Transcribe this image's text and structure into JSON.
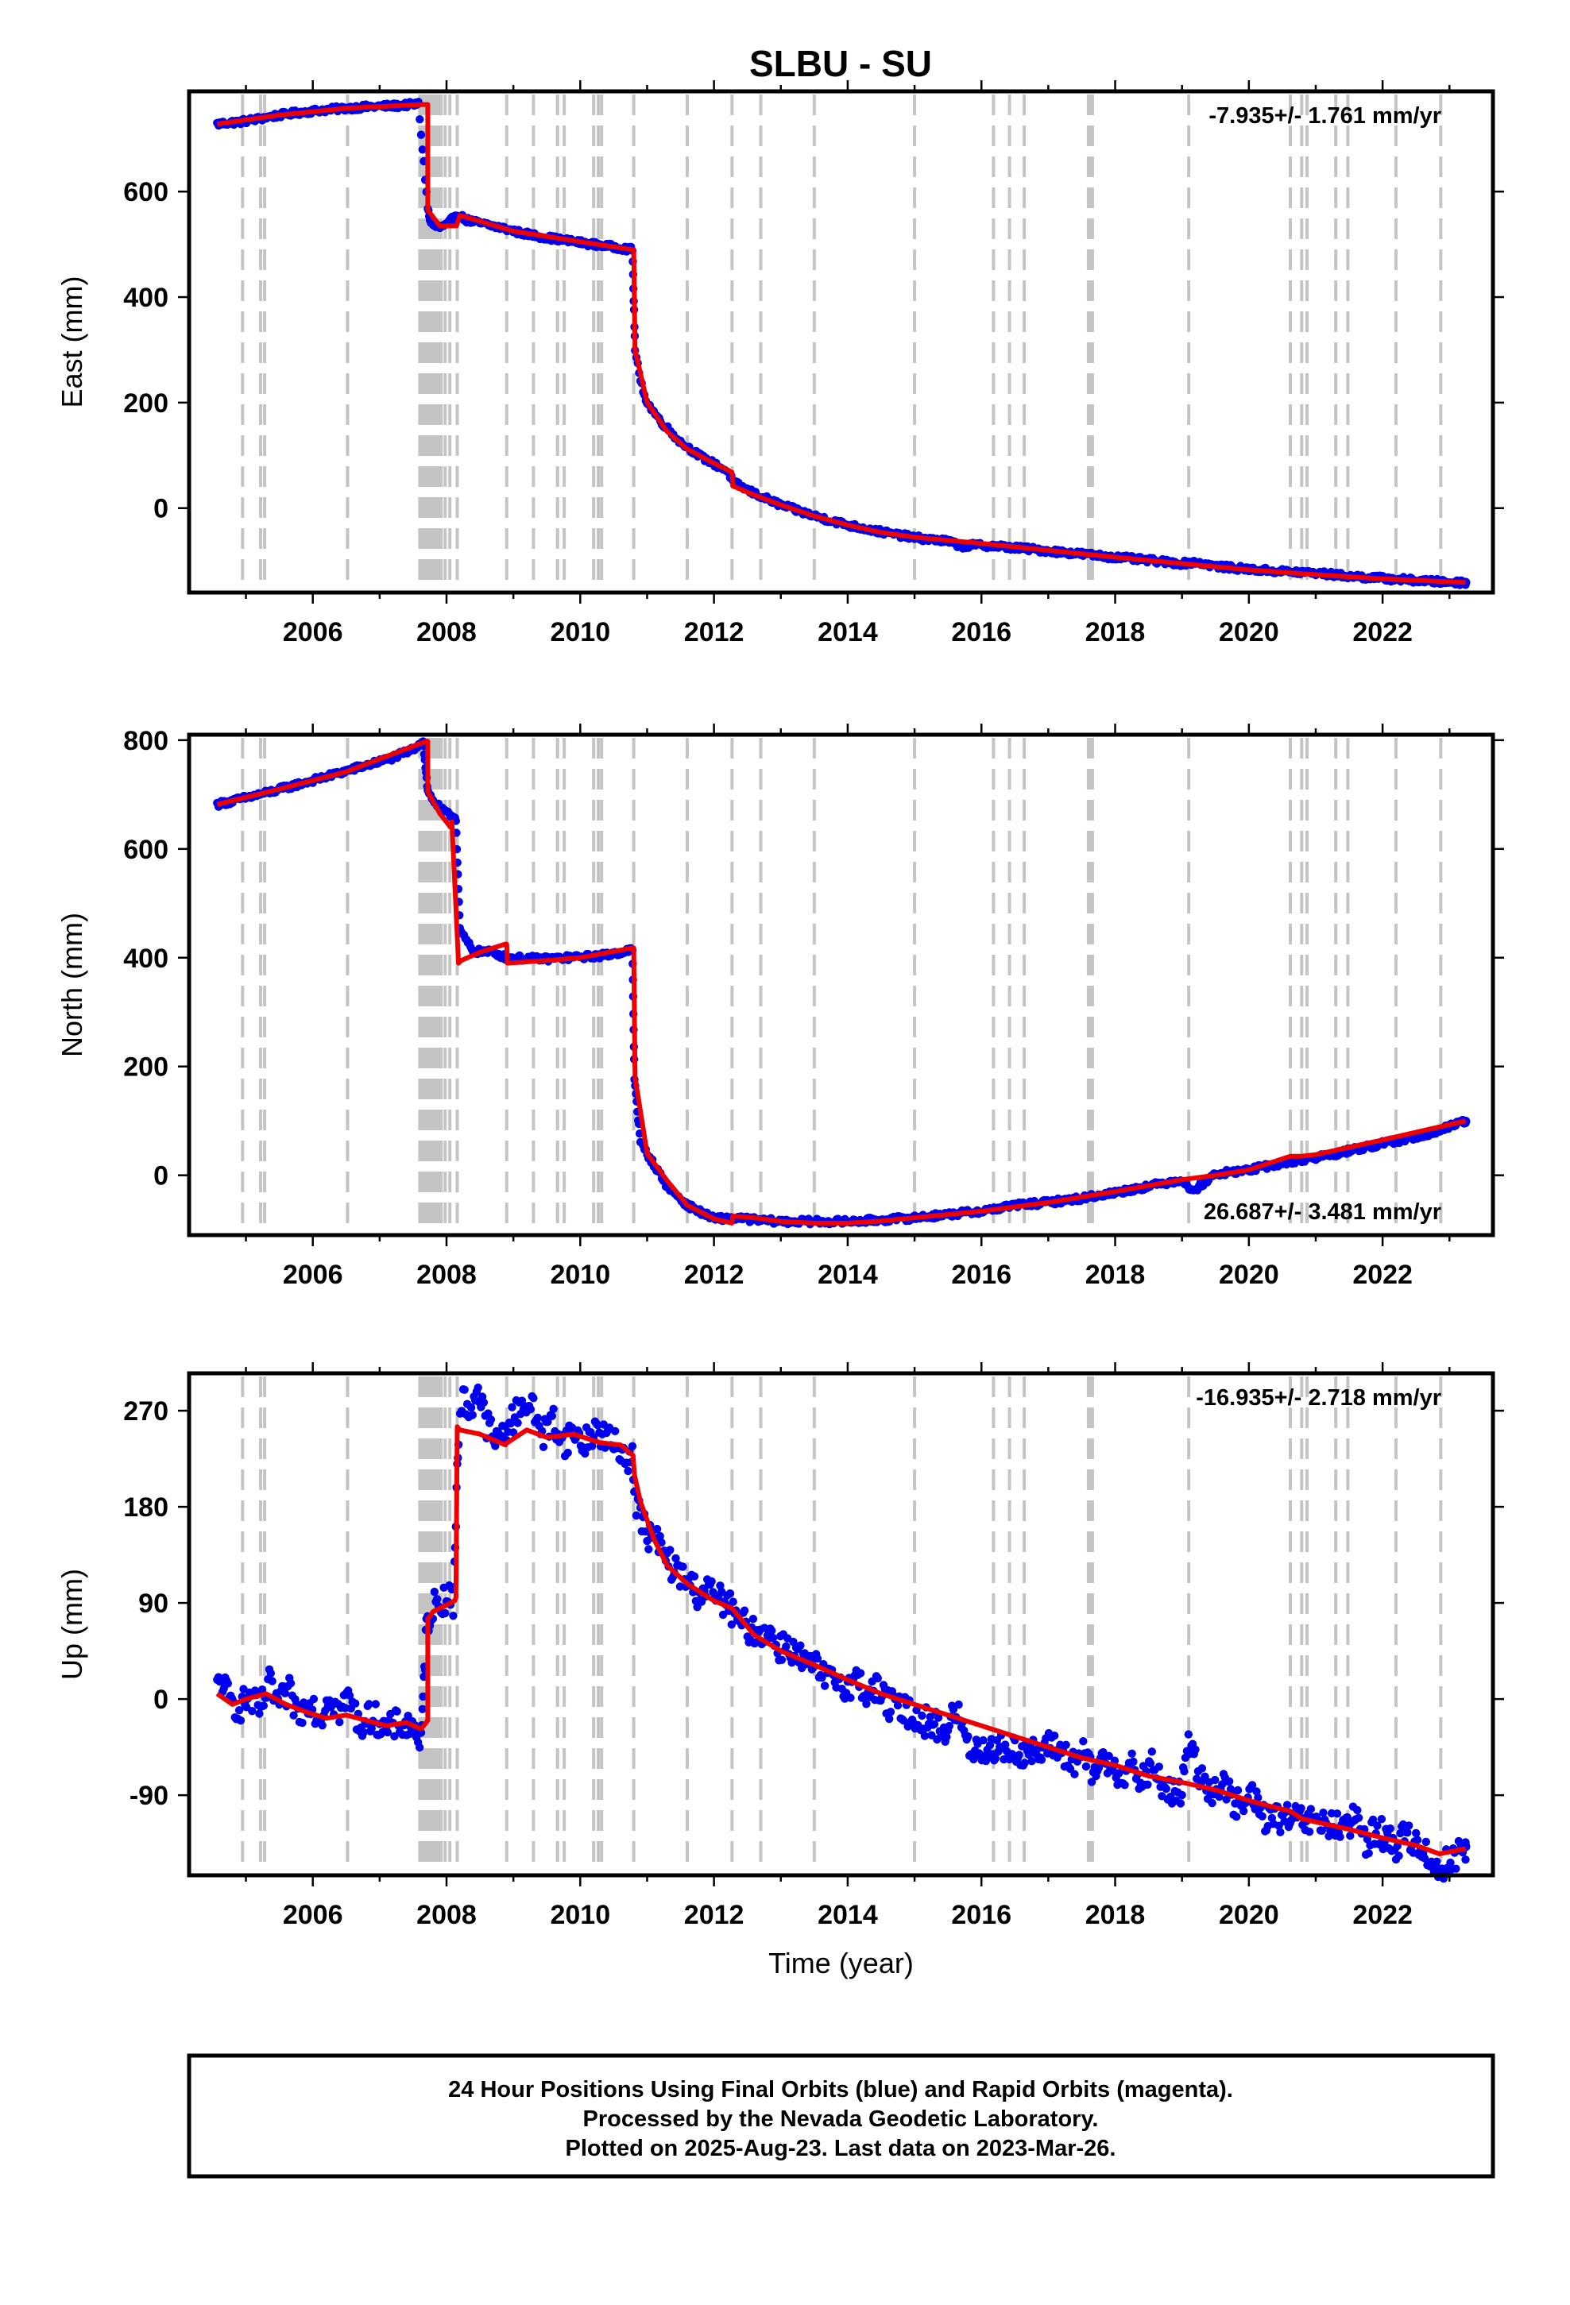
{
  "chart_data": [
    {
      "type": "scatter",
      "title": "SLBU - SU",
      "ylabel": "East (mm)",
      "xlabel": "",
      "xlim": [
        2004.15,
        2023.65
      ],
      "ylim": [
        -160,
        790
      ],
      "xticks": [
        2006,
        2008,
        2010,
        2012,
        2014,
        2016,
        2018,
        2020,
        2022
      ],
      "yticks": [
        0,
        200,
        400,
        600
      ],
      "velocity": "-7.935+/- 1.761 mm/yr",
      "velocity_position": "top-right",
      "gridlines": [
        2004.95,
        2005.22,
        2005.28,
        2006.52,
        2007.6,
        2007.63,
        2007.66,
        2007.69,
        2007.72,
        2007.75,
        2007.78,
        2007.81,
        2007.84,
        2007.88,
        2007.92,
        2007.98,
        2008.05,
        2008.16,
        2008.9,
        2009.3,
        2009.66,
        2009.76,
        2010.2,
        2010.27,
        2010.32,
        2010.8,
        2011.6,
        2012.27,
        2012.7,
        2013.5,
        2015.0,
        2016.18,
        2016.42,
        2016.64,
        2017.6,
        2017.63,
        2017.66,
        2019.1,
        2020.62,
        2020.79,
        2020.87,
        2021.3,
        2021.48,
        2022.2,
        2022.87
      ],
      "series": [
        {
          "color": "#0000ee",
          "x": [
            2004.57,
            2004.7,
            2004.9,
            2005.2,
            2005.5,
            2005.8,
            2006.1,
            2006.5,
            2006.9,
            2007.3,
            2007.58,
            2007.72,
            2007.75,
            2007.8,
            2007.9,
            2008.0,
            2008.15,
            2008.3,
            2008.5,
            2008.8,
            2009.1,
            2009.4,
            2009.8,
            2010.2,
            2010.5,
            2010.78,
            2010.82,
            2010.9,
            2011.0,
            2011.2,
            2011.5,
            2011.8,
            2012.2,
            2012.3,
            2012.6,
            2013.0,
            2013.5,
            2014.0,
            2014.5,
            2015.0,
            2015.5,
            2015.7,
            2016.0,
            2016.5,
            2017.0,
            2017.5,
            2018.0,
            2018.5,
            2019.0,
            2019.2,
            2019.5,
            2020.0,
            2020.5,
            2021.0,
            2021.5,
            2022.0,
            2022.5,
            2022.9,
            2023.24
          ],
          "y": [
            728,
            730,
            732,
            738,
            745,
            750,
            754,
            758,
            761,
            763,
            766,
            570,
            545,
            535,
            532,
            535,
            558,
            546,
            540,
            532,
            522,
            515,
            507,
            500,
            495,
            490,
            300,
            240,
            200,
            165,
            125,
            98,
            70,
            48,
            28,
            6,
            -15,
            -32,
            -45,
            -56,
            -63,
            -72,
            -70,
            -75,
            -81,
            -87,
            -93,
            -99,
            -105,
            -102,
            -110,
            -116,
            -120,
            -123,
            -129,
            -133,
            -137,
            -140,
            -141
          ]
        },
        {
          "color": "#ee0000",
          "x": [
            2004.57,
            2005.5,
            2006.5,
            2007.62,
            2007.72,
            2007.72,
            2007.9,
            2008.15,
            2008.2,
            2009.0,
            2010.0,
            2010.78,
            2010.8,
            2010.82,
            2011.0,
            2011.3,
            2011.6,
            2012.0,
            2012.27,
            2012.28,
            2012.6,
            2013.0,
            2013.5,
            2014.0,
            2014.5,
            2015.0,
            2016.0,
            2017.0,
            2018.0,
            2019.0,
            2020.0,
            2021.0,
            2022.0,
            2023.24
          ],
          "y": [
            728,
            745,
            758,
            765,
            765,
            565,
            535,
            535,
            555,
            525,
            505,
            490,
            490,
            300,
            200,
            145,
            112,
            85,
            68,
            42,
            25,
            6,
            -15,
            -32,
            -46,
            -55,
            -67,
            -80,
            -93,
            -105,
            -117,
            -126,
            -134,
            -141
          ]
        }
      ]
    },
    {
      "type": "scatter",
      "title": "",
      "ylabel": "North (mm)",
      "xlabel": "",
      "xlim": [
        2004.15,
        2023.65
      ],
      "ylim": [
        -110,
        810
      ],
      "xticks": [
        2006,
        2008,
        2010,
        2012,
        2014,
        2016,
        2018,
        2020,
        2022
      ],
      "yticks": [
        0,
        200,
        400,
        600,
        800
      ],
      "velocity": "26.687+/- 3.481 mm/yr",
      "velocity_position": "bottom-right",
      "gridlines": [
        2004.95,
        2005.22,
        2005.28,
        2006.52,
        2007.6,
        2007.63,
        2007.66,
        2007.69,
        2007.72,
        2007.75,
        2007.78,
        2007.81,
        2007.84,
        2007.88,
        2007.92,
        2007.98,
        2008.05,
        2008.16,
        2008.9,
        2009.3,
        2009.66,
        2009.76,
        2010.2,
        2010.27,
        2010.32,
        2010.8,
        2011.6,
        2012.27,
        2012.7,
        2013.5,
        2015.0,
        2016.18,
        2016.42,
        2016.64,
        2017.6,
        2017.63,
        2017.66,
        2019.1,
        2020.62,
        2020.79,
        2020.87,
        2021.3,
        2021.48,
        2022.2,
        2022.87
      ],
      "series": [
        {
          "color": "#0000ee",
          "x": [
            2004.57,
            2004.8,
            2005.1,
            2005.4,
            2005.7,
            2006.0,
            2006.3,
            2006.6,
            2006.9,
            2007.2,
            2007.5,
            2007.65,
            2007.72,
            2007.8,
            2007.9,
            2008.0,
            2008.1,
            2008.14,
            2008.2,
            2008.4,
            2008.7,
            2008.9,
            2009.2,
            2009.5,
            2009.8,
            2010.1,
            2010.4,
            2010.6,
            2010.78,
            2010.81,
            2010.9,
            2011.1,
            2011.3,
            2011.6,
            2012.0,
            2012.3,
            2012.6,
            2013.0,
            2013.5,
            2014.0,
            2014.5,
            2015.0,
            2015.5,
            2016.0,
            2016.5,
            2017.0,
            2017.5,
            2018.0,
            2018.5,
            2019.0,
            2019.15,
            2019.5,
            2020.0,
            2020.5,
            2021.0,
            2021.5,
            2022.0,
            2022.5,
            2022.9,
            2023.24
          ],
          "y": [
            682,
            688,
            697,
            706,
            716,
            726,
            736,
            747,
            757,
            768,
            783,
            800,
            705,
            690,
            675,
            665,
            660,
            655,
            450,
            412,
            410,
            400,
            399,
            398,
            400,
            402,
            405,
            410,
            415,
            180,
            60,
            20,
            -20,
            -55,
            -80,
            -78,
            -82,
            -85,
            -85,
            -85,
            -82,
            -78,
            -72,
            -66,
            -55,
            -50,
            -42,
            -32,
            -20,
            -8,
            -30,
            2,
            10,
            22,
            32,
            45,
            58,
            70,
            85,
            99
          ]
        },
        {
          "color": "#ee0000",
          "x": [
            2004.57,
            2005.5,
            2006.5,
            2007.7,
            2007.72,
            2007.72,
            2007.9,
            2008.06,
            2008.08,
            2008.18,
            2008.22,
            2008.5,
            2008.88,
            2008.9,
            2008.91,
            2009.5,
            2010.0,
            2010.78,
            2010.8,
            2010.82,
            2011.0,
            2011.3,
            2011.6,
            2012.0,
            2012.27,
            2012.28,
            2012.6,
            2013.0,
            2013.5,
            2014.0,
            2014.5,
            2015.0,
            2016.0,
            2017.0,
            2018.0,
            2019.0,
            2019.5,
            2020.0,
            2020.62,
            2020.79,
            2021.0,
            2022.0,
            2023.24
          ],
          "y": [
            682,
            710,
            742,
            798,
            798,
            705,
            665,
            640,
            650,
            390,
            395,
            410,
            425,
            425,
            390,
            395,
            400,
            418,
            418,
            180,
            40,
            -10,
            -55,
            -80,
            -88,
            -75,
            -78,
            -85,
            -88,
            -88,
            -84,
            -78,
            -66,
            -50,
            -30,
            -8,
            0,
            10,
            35,
            35,
            38,
            65,
            100
          ]
        }
      ]
    },
    {
      "type": "scatter",
      "title": "",
      "ylabel": "Up (mm)",
      "xlabel": "Time (year)",
      "xlim": [
        2004.15,
        2023.65
      ],
      "ylim": [
        -165,
        305
      ],
      "xticks": [
        2006,
        2008,
        2010,
        2012,
        2014,
        2016,
        2018,
        2020,
        2022
      ],
      "yticks": [
        -90,
        0,
        90,
        180,
        270
      ],
      "velocity": "-16.935+/- 2.718 mm/yr",
      "velocity_position": "top-right",
      "gridlines": [
        2004.95,
        2005.22,
        2005.28,
        2006.52,
        2007.6,
        2007.63,
        2007.66,
        2007.69,
        2007.72,
        2007.75,
        2007.78,
        2007.81,
        2007.84,
        2007.88,
        2007.92,
        2007.98,
        2008.05,
        2008.16,
        2008.9,
        2009.3,
        2009.66,
        2009.76,
        2010.2,
        2010.27,
        2010.32,
        2010.8,
        2011.6,
        2012.27,
        2012.7,
        2013.5,
        2015.0,
        2016.18,
        2016.42,
        2016.64,
        2017.6,
        2017.63,
        2017.66,
        2019.1,
        2020.62,
        2020.79,
        2020.87,
        2021.3,
        2021.48,
        2022.2,
        2022.87
      ],
      "series": [
        {
          "color": "#0000ee",
          "x": [
            2004.57,
            2004.65,
            2004.75,
            2004.9,
            2005.05,
            2005.2,
            2005.35,
            2005.5,
            2005.65,
            2005.8,
            2005.95,
            2006.1,
            2006.25,
            2006.4,
            2006.55,
            2006.7,
            2006.9,
            2007.1,
            2007.3,
            2007.55,
            2007.62,
            2007.7,
            2007.75,
            2007.82,
            2007.9,
            2008.0,
            2008.1,
            2008.18,
            2008.25,
            2008.35,
            2008.45,
            2008.6,
            2008.75,
            2008.9,
            2009.0,
            2009.15,
            2009.3,
            2009.45,
            2009.6,
            2009.75,
            2009.9,
            2010.05,
            2010.2,
            2010.35,
            2010.5,
            2010.65,
            2010.78,
            2010.82,
            2010.9,
            2011.0,
            2011.15,
            2011.3,
            2011.45,
            2011.6,
            2011.75,
            2011.9,
            2012.05,
            2012.2,
            2012.35,
            2012.5,
            2012.65,
            2012.8,
            2012.95,
            2013.1,
            2013.25,
            2013.4,
            2013.55,
            2013.7,
            2013.85,
            2014.0,
            2014.15,
            2014.3,
            2014.45,
            2014.6,
            2014.75,
            2014.9,
            2015.05,
            2015.5,
            2015.6,
            2015.7,
            2015.8,
            2016.5,
            2016.9,
            2017.05,
            2017.2,
            2017.35,
            2017.5,
            2017.65,
            2017.8,
            2017.95,
            2018.1,
            2018.25,
            2018.4,
            2018.55,
            2018.7,
            2018.85,
            2019.0,
            2019.05,
            2019.12,
            2019.2,
            2019.3,
            2019.45,
            2019.6,
            2019.75,
            2019.9,
            2020.05,
            2020.2,
            2021.3,
            2021.45,
            2021.6,
            2021.75,
            2021.9,
            2022.05,
            2022.2,
            2022.35,
            2022.5,
            2022.65,
            2022.75,
            2022.85,
            2023.24
          ],
          "y": [
            10,
            18,
            -2,
            -8,
            2,
            -12,
            14,
            -5,
            6,
            -16,
            3,
            -20,
            5,
            -12,
            2,
            -25,
            -15,
            -30,
            -22,
            -28,
            -45,
            68,
            80,
            88,
            92,
            95,
            90,
            250,
            282,
            268,
            292,
            258,
            240,
            255,
            262,
            280,
            270,
            248,
            262,
            240,
            250,
            238,
            252,
            248,
            238,
            230,
            225,
            190,
            170,
            155,
            148,
            130,
            118,
            112,
            100,
            102,
            95,
            90,
            72,
            68,
            60,
            65,
            48,
            52,
            40,
            32,
            28,
            16,
            20,
            12,
            18,
            5,
            10,
            -5,
            -8,
            -12,
            -18,
            -30,
            -10,
            -22,
            -45,
            -48,
            -52,
            -42,
            -48,
            -62,
            -50,
            -70,
            -58,
            -60,
            -72,
            -65,
            -78,
            -62,
            -80,
            -88,
            -90,
            -50,
            -40,
            -60,
            -75,
            -85,
            -78,
            -95,
            -102,
            -88,
            -110,
            -118,
            -125,
            -110,
            -135,
            -120,
            -130,
            -140,
            -125,
            -135,
            -145,
            -155,
            -160,
            -138
          ]
        },
        {
          "color": "#ee0000",
          "x": [
            2004.57,
            2004.8,
            2005.0,
            2005.3,
            2005.6,
            2005.9,
            2006.2,
            2006.5,
            2006.8,
            2007.1,
            2007.4,
            2007.62,
            2007.72,
            2007.72,
            2007.8,
            2008.0,
            2008.12,
            2008.14,
            2008.16,
            2008.2,
            2008.5,
            2008.88,
            2008.9,
            2008.91,
            2009.2,
            2009.5,
            2009.9,
            2010.3,
            2010.6,
            2010.79,
            2010.81,
            2010.9,
            2011.1,
            2011.3,
            2011.6,
            2012.0,
            2012.27,
            2012.6,
            2013.0,
            2013.5,
            2014.0,
            2014.5,
            2015.0,
            2015.5,
            2016.0,
            2016.5,
            2017.0,
            2017.5,
            2018.0,
            2018.5,
            2019.0,
            2019.5,
            2020.0,
            2020.3,
            2020.62,
            2020.79,
            2021.0,
            2021.5,
            2022.0,
            2022.5,
            2022.85,
            2023.24
          ],
          "y": [
            5,
            -5,
            0,
            5,
            -5,
            -12,
            -18,
            -15,
            -20,
            -25,
            -22,
            -28,
            -20,
            75,
            82,
            88,
            92,
            95,
            255,
            252,
            248,
            238,
            240,
            240,
            252,
            245,
            248,
            240,
            238,
            228,
            210,
            185,
            150,
            125,
            108,
            92,
            85,
            60,
            45,
            32,
            18,
            5,
            -5,
            -15,
            -25,
            -35,
            -45,
            -55,
            -62,
            -72,
            -78,
            -85,
            -95,
            -100,
            -105,
            -112,
            -115,
            -122,
            -130,
            -137,
            -145,
            -140
          ]
        }
      ]
    }
  ],
  "footer": {
    "line1": "24 Hour Positions Using Final Orbits (blue) and Rapid Orbits (magenta).",
    "line2": "Processed by the Nevada Geodetic Laboratory.",
    "line3": "Plotted on 2025-Aug-23. Last data on 2023-Mar-26."
  }
}
